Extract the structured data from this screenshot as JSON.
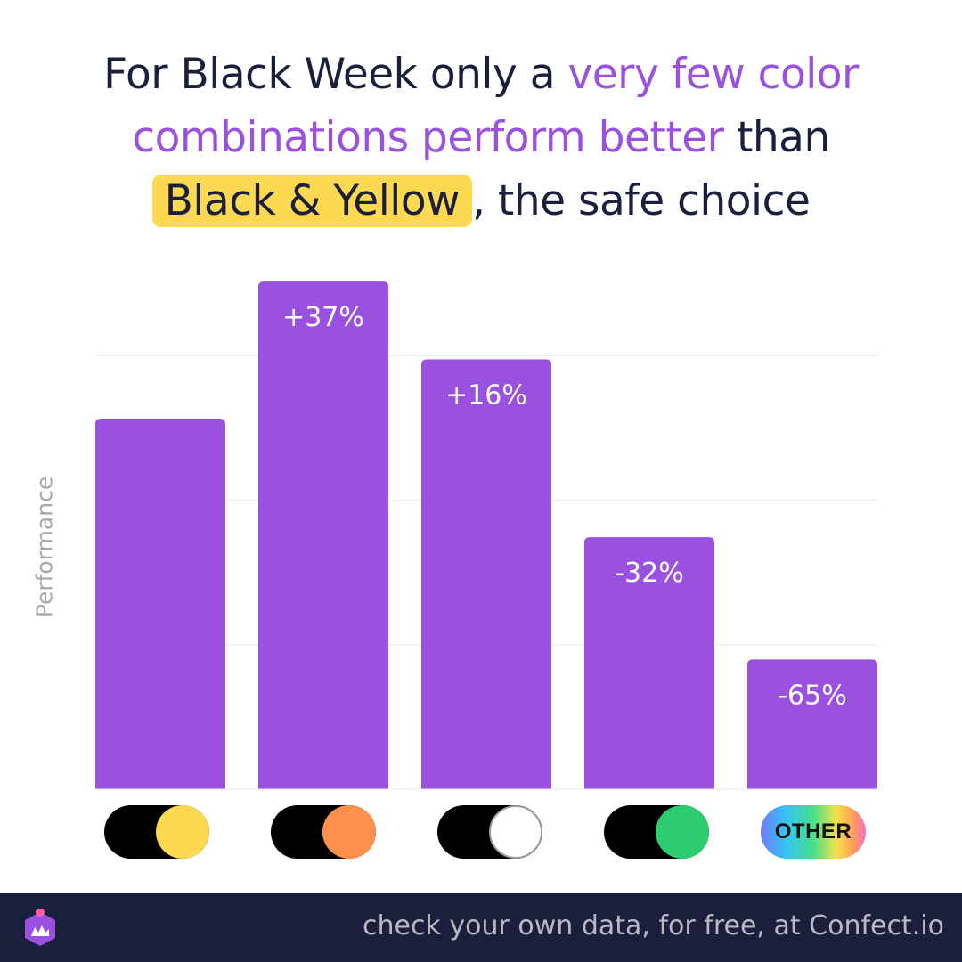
{
  "headline": {
    "part1": "For Black Week only a ",
    "accent": "very few color combinations perform better",
    "part2": " than ",
    "highlight": "Black & Yellow",
    "part3": ", the safe choice"
  },
  "colors": {
    "bar": "#9b51e0",
    "accent": "#9b51e0",
    "highlight": "#fdd952",
    "text": "#1c1f3c",
    "footer_bg": "#1c1f3c"
  },
  "chart_data": {
    "type": "bar",
    "title": "For Black Week only a very few color combinations perform better than Black & Yellow, the safe choice",
    "ylabel": "Performance",
    "categories": [
      "Black & Yellow",
      "Black & Orange",
      "Black & White",
      "Black & Green",
      "OTHER"
    ],
    "values": [
      0,
      37,
      16,
      -32,
      -65
    ],
    "value_labels": [
      "",
      "+37%",
      "+16%",
      "-32%",
      "-65%"
    ],
    "grid": true,
    "legend": "none"
  },
  "swatches": [
    {
      "icon": "black-yellow-swatch-icon",
      "left": "#000000",
      "right": "#fdd952"
    },
    {
      "icon": "black-orange-swatch-icon",
      "left": "#000000",
      "right": "#ff914d"
    },
    {
      "icon": "black-white-swatch-icon",
      "left": "#000000",
      "right": "#ffffff"
    },
    {
      "icon": "black-green-swatch-icon",
      "left": "#000000",
      "right": "#2ecc71"
    },
    {
      "icon": "rainbow-swatch-icon",
      "label": "OTHER"
    }
  ],
  "footer": {
    "cta": "check your own data, for free, at Confect.io",
    "logo_icon": "confect-logo-icon"
  }
}
